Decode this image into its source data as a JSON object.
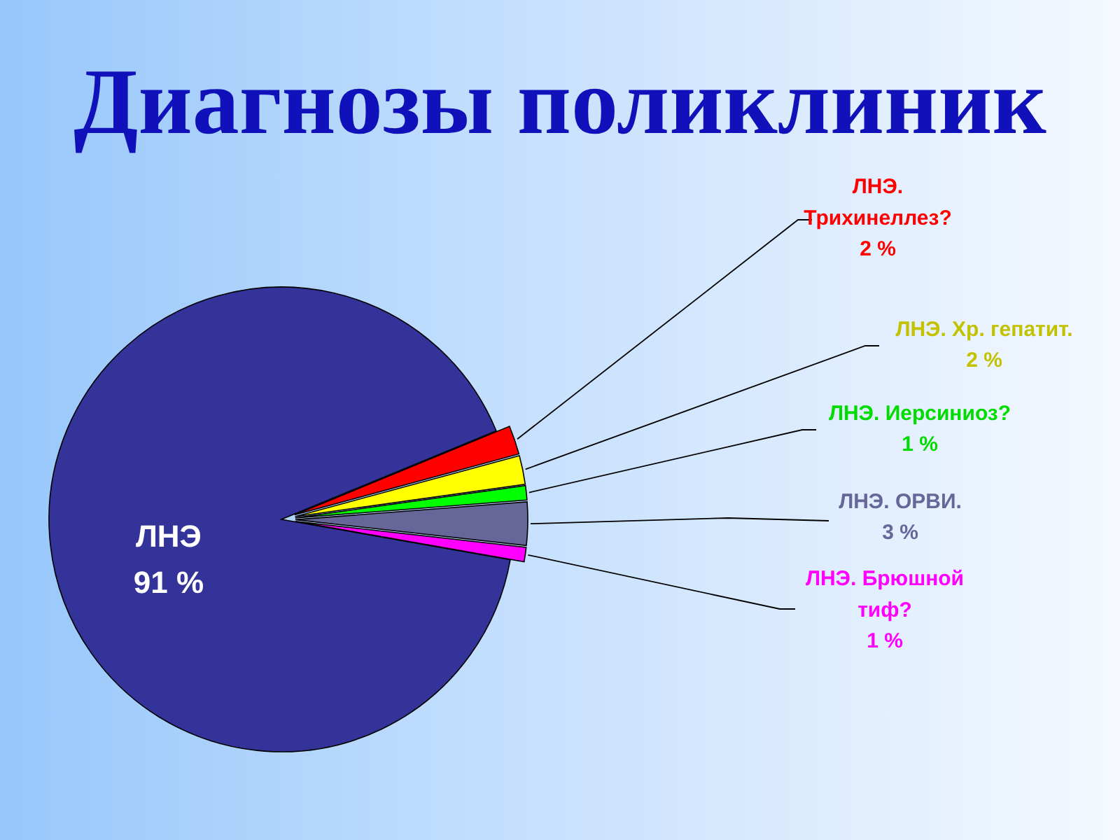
{
  "chart_data": {
    "type": "pie",
    "title": "Диагнозы поликлиник",
    "categories": [
      "ЛНЭ",
      "ЛНЭ. Трихинеллез?",
      "ЛНЭ. Хр. гепатит.",
      "ЛНЭ. Иерсиниоз?",
      "ЛНЭ. ОРВИ.",
      "ЛНЭ. Брюшной тиф?"
    ],
    "values": [
      91,
      2,
      2,
      1,
      3,
      1
    ],
    "colors": [
      "#333399",
      "#ff0000",
      "#ffff00",
      "#00ff00",
      "#666699",
      "#ff00ff"
    ],
    "value_labels": [
      "91 %",
      "2 %",
      "2 %",
      "1 %",
      "3 %",
      "1 %"
    ]
  }
}
